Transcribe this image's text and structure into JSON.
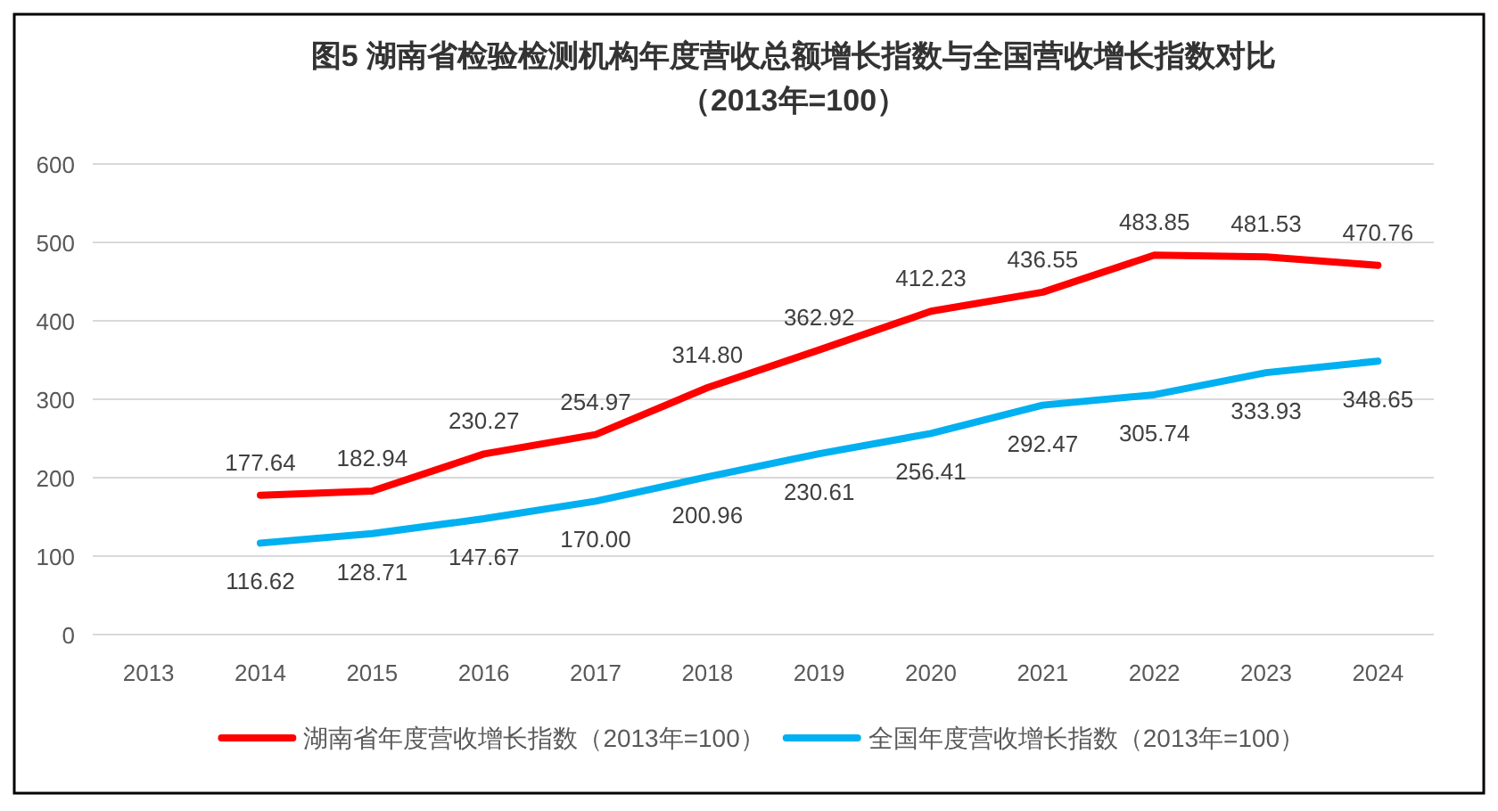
{
  "chart_data": {
    "type": "line",
    "title": "图5  湖南省检验检测机构年度营收总额增长指数与全国营收增长指数对比",
    "subtitle": "（2013年=100）",
    "categories": [
      "2013",
      "2014",
      "2015",
      "2016",
      "2017",
      "2018",
      "2019",
      "2020",
      "2021",
      "2022",
      "2023",
      "2024"
    ],
    "series": [
      {
        "name": "湖南省年度营收增长指数（2013年=100）",
        "color": "#ff0000",
        "values": [
          null,
          177.64,
          182.94,
          230.27,
          254.97,
          314.8,
          362.92,
          412.23,
          436.55,
          483.85,
          481.53,
          470.76
        ],
        "value_labels": [
          null,
          "177.64",
          "182.94",
          "230.27",
          "254.97",
          "314.80",
          "362.92",
          "412.23",
          "436.55",
          "483.85",
          "481.53",
          "470.76"
        ]
      },
      {
        "name": "全国年度营收增长指数（2013年=100）",
        "color": "#00b0f0",
        "values": [
          null,
          116.62,
          128.71,
          147.67,
          170.0,
          200.96,
          230.61,
          256.41,
          292.47,
          305.74,
          333.93,
          348.65
        ],
        "value_labels": [
          null,
          "116.62",
          "128.71",
          "147.67",
          "170.00",
          "200.96",
          "230.61",
          "256.41",
          "292.47",
          "305.74",
          "333.93",
          "348.65"
        ]
      }
    ],
    "ylim": [
      0,
      600
    ],
    "yticks": [
      0,
      100,
      200,
      300,
      400,
      500,
      600
    ],
    "grid": "y",
    "legend": "bottom"
  }
}
